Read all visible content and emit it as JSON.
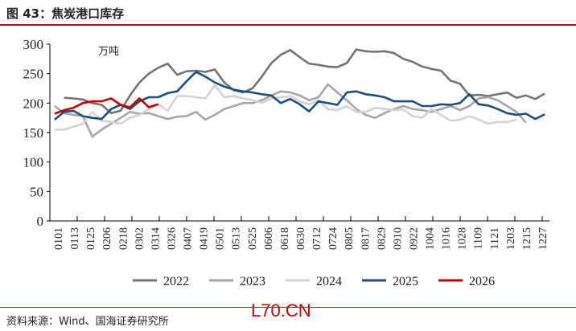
{
  "title": "图 43：焦炭港口库存",
  "source": "资料来源：Wind、国海证券研究所",
  "watermark": "L70.CN",
  "chart_data": {
    "type": "line",
    "title": "焦炭港口库存",
    "unit_label": "万吨",
    "ylim": [
      0,
      300
    ],
    "yticks": [
      0,
      50,
      100,
      150,
      200,
      250,
      300
    ],
    "xticks": [
      "0101",
      "0113",
      "0125",
      "0206",
      "0218",
      "0302",
      "0314",
      "0326",
      "0407",
      "0419",
      "0501",
      "0513",
      "0525",
      "0606",
      "0618",
      "0630",
      "0712",
      "0724",
      "0805",
      "0817",
      "0829",
      "0910",
      "0922",
      "1004",
      "1016",
      "1028",
      "1109",
      "1121",
      "1203",
      "1215",
      "1227"
    ],
    "x_unit": "week index (0 = first week of January)",
    "legend_position": "bottom",
    "series": [
      {
        "name": "2022",
        "color": "#737373",
        "start_week": 1,
        "values": [
          209,
          208,
          206,
          200,
          197,
          183,
          187,
          213,
          235,
          250,
          260,
          267,
          248,
          254,
          255,
          253,
          257,
          235,
          222,
          218,
          225,
          245,
          268,
          282,
          290,
          278,
          267,
          265,
          262,
          261,
          268,
          291,
          288,
          287,
          288,
          285,
          275,
          270,
          262,
          258,
          255,
          238,
          233,
          213,
          214,
          212,
          215,
          218,
          209,
          213,
          207,
          216
        ]
      },
      {
        "name": "2023",
        "color": "#a6a6a6",
        "start_week": 0,
        "values": [
          195,
          183,
          180,
          178,
          143,
          155,
          165,
          175,
          185,
          182,
          183,
          178,
          173,
          177,
          178,
          185,
          172,
          180,
          190,
          195,
          200,
          200,
          205,
          213,
          220,
          218,
          213,
          205,
          210,
          232,
          218,
          205,
          190,
          180,
          175,
          183,
          190,
          195,
          190,
          188,
          185,
          190,
          195,
          188,
          195,
          208,
          210,
          205,
          195,
          185,
          167
        ]
      },
      {
        "name": "2024",
        "color": "#d3d3d3",
        "start_week": 0,
        "values": [
          155,
          155,
          160,
          165,
          185,
          170,
          168,
          165,
          175,
          180,
          190,
          198,
          187,
          212,
          212,
          210,
          208,
          230,
          210,
          212,
          208,
          205,
          200,
          208,
          210,
          212,
          203,
          198,
          205,
          190,
          188,
          195,
          185,
          185,
          192,
          190,
          188,
          189,
          178,
          175,
          190,
          180,
          170,
          172,
          178,
          172,
          165,
          168,
          168,
          172
        ]
      },
      {
        "name": "2025",
        "color": "#1f4e79",
        "start_week": 0,
        "values": [
          172,
          185,
          187,
          178,
          175,
          173,
          190,
          197,
          190,
          203,
          210,
          210,
          217,
          220,
          237,
          253,
          245,
          235,
          228,
          223,
          220,
          218,
          215,
          213,
          200,
          207,
          198,
          186,
          203,
          200,
          197,
          218,
          220,
          215,
          213,
          210,
          203,
          203,
          203,
          195,
          195,
          198,
          197,
          200,
          215,
          198,
          196,
          190,
          183,
          180,
          182,
          173,
          181
        ]
      },
      {
        "name": "2026",
        "color": "#c00000",
        "start_week": 0,
        "values": [
          182,
          188,
          192,
          200,
          203,
          203,
          208,
          197,
          193,
          208,
          193,
          198
        ]
      }
    ]
  }
}
